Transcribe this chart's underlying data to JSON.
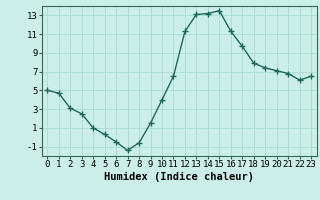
{
  "x": [
    0,
    1,
    2,
    3,
    4,
    5,
    6,
    7,
    8,
    9,
    10,
    11,
    12,
    13,
    14,
    15,
    16,
    17,
    18,
    19,
    20,
    21,
    22,
    23
  ],
  "y": [
    5.0,
    4.7,
    3.1,
    2.5,
    1.0,
    0.3,
    -0.5,
    -1.4,
    -0.6,
    1.5,
    4.0,
    6.5,
    11.3,
    13.1,
    13.2,
    13.5,
    11.3,
    9.7,
    7.9,
    7.4,
    7.1,
    6.8,
    6.1,
    6.5
  ],
  "line_color": "#1a6b5a",
  "marker": "+",
  "marker_size": 4,
  "bg_color": "#cceee8",
  "grid_color": "#aaddcc",
  "xlabel": "Humidex (Indice chaleur)",
  "ylim": [
    -2,
    14
  ],
  "xlim": [
    -0.5,
    23.5
  ],
  "yticks": [
    -1,
    1,
    3,
    5,
    7,
    9,
    11,
    13
  ],
  "xticks": [
    0,
    1,
    2,
    3,
    4,
    5,
    6,
    7,
    8,
    9,
    10,
    11,
    12,
    13,
    14,
    15,
    16,
    17,
    18,
    19,
    20,
    21,
    22,
    23
  ],
  "xlabel_fontsize": 7.5,
  "tick_fontsize": 6.5,
  "line_width": 1.0
}
